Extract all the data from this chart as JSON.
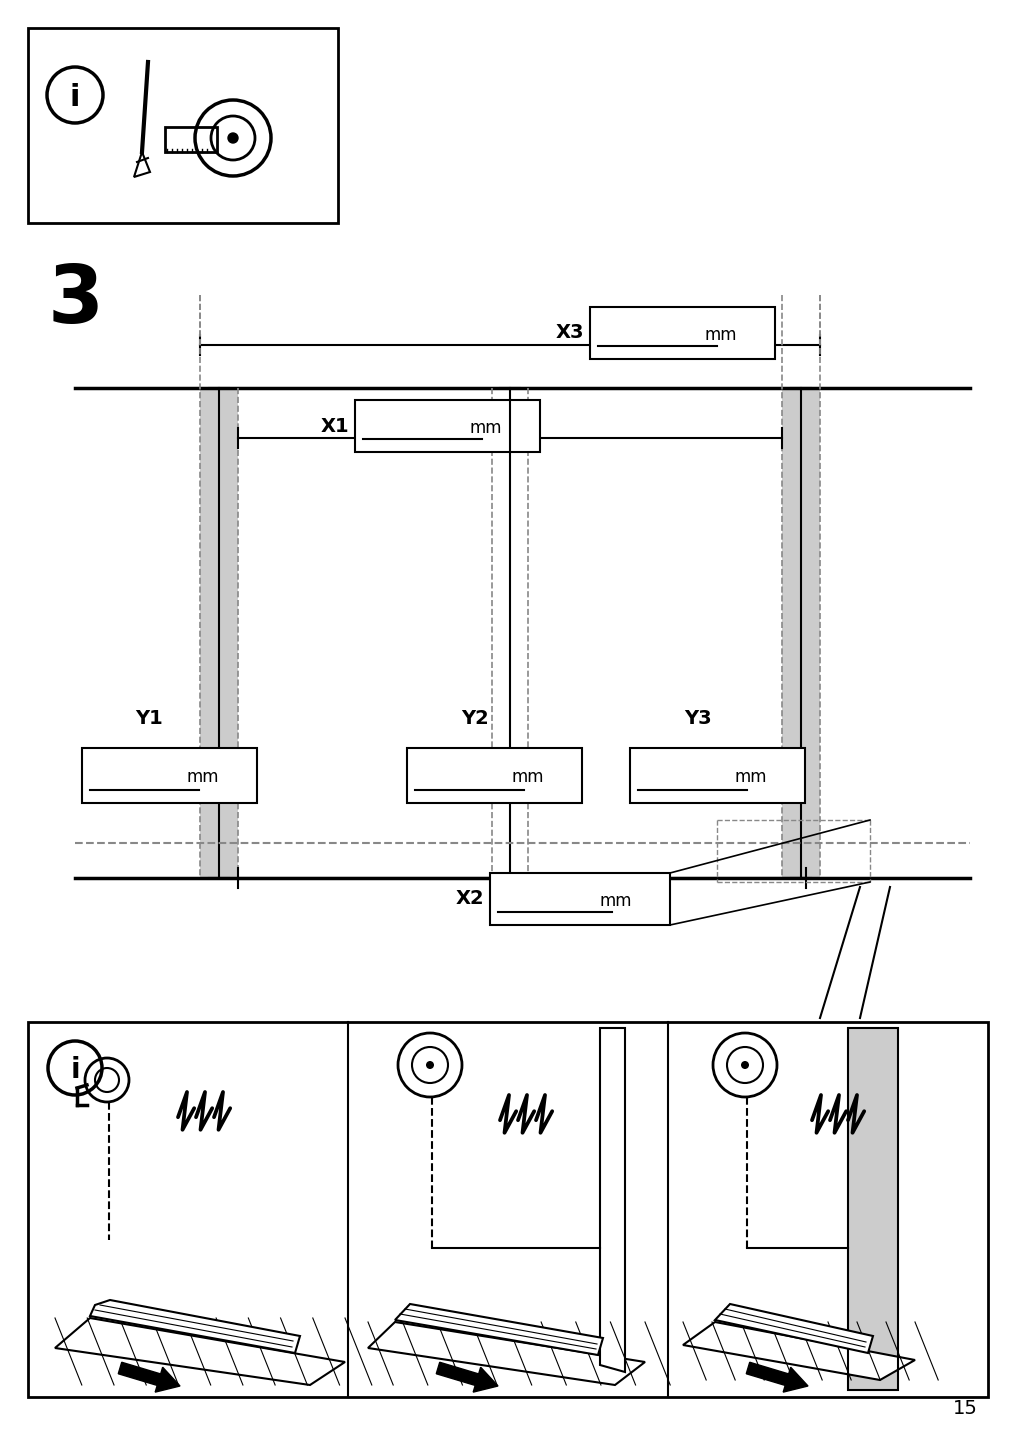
{
  "page_number": "15",
  "step_number": "3",
  "background_color": "#ffffff",
  "line_color": "#000000",
  "gray_color": "#aaaaaa",
  "light_gray": "#cccccc",
  "dashed_color": "#888888",
  "mm_text": "mm"
}
